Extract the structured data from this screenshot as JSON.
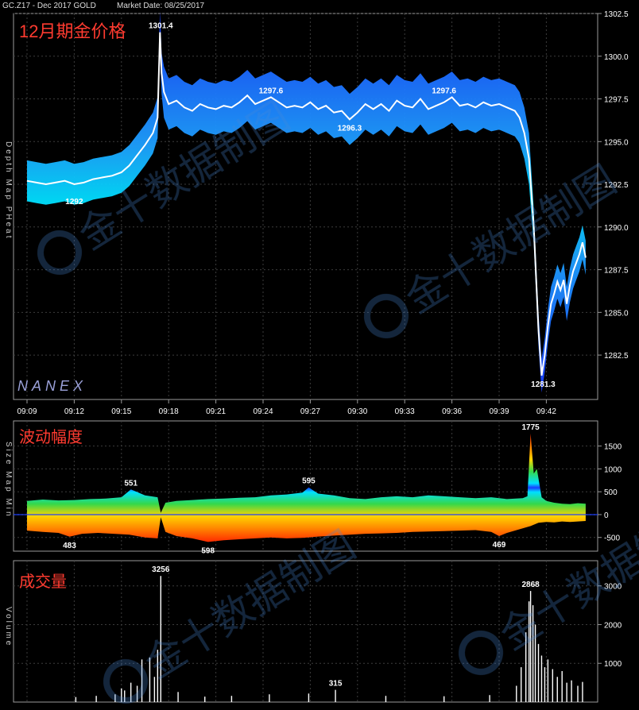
{
  "header": {
    "symbol": "GC.Z17 - Dec 2017 GOLD",
    "market_date": "Market Date: 08/25/2017"
  },
  "colors": {
    "background": "#000000",
    "panel_border": "#9a9a9a",
    "grid": "#3c3c3c",
    "title_red": "#ff3b30",
    "price_line": "#ffffff",
    "depth_blue": "#1a3cff",
    "heat_cyan": "#00e0ff",
    "heat_green": "#35d84a",
    "heat_yellow": "#ffd400",
    "heat_red": "#ff2a00"
  },
  "watermark": {
    "text": "金十数据制图",
    "icon": "jin10-logo-icon"
  },
  "chart_data": [
    {
      "id": "price",
      "type": "line",
      "title": "12月期金价格",
      "side_label": "Depth Map PHeat",
      "brand": "NANEX",
      "x_ticks": [
        "09:09",
        "09:12",
        "09:15",
        "09:18",
        "09:21",
        "09:24",
        "09:27",
        "09:30",
        "09:33",
        "09:36",
        "09:39",
        "09:42"
      ],
      "y_ticks": [
        1302.5,
        1300,
        1297.5,
        1295,
        1292.5,
        1290,
        1287.5,
        1285,
        1282.5
      ],
      "ylim": [
        1279.9,
        1302.5
      ],
      "annotations": [
        {
          "label": "1301.4",
          "x": "09:17.5",
          "y": 1301.4
        },
        {
          "label": "1297.6",
          "x": "09:24.5",
          "y": 1297.6
        },
        {
          "label": "1297.6",
          "x": "09:35.5",
          "y": 1297.6
        },
        {
          "label": "1296.3",
          "x": "09:29.5",
          "y": 1296.3
        },
        {
          "label": "1292",
          "x": "09:12",
          "y": 1292.0
        },
        {
          "label": "1281.3",
          "x": "09:41.8",
          "y": 1281.3
        }
      ],
      "series": [
        {
          "x": [
            9.0,
            9.6,
            10.2,
            10.8,
            11.4,
            12.0,
            12.6,
            13.2,
            13.8,
            14.4,
            15.0,
            15.5,
            16.0,
            16.5,
            17.0,
            17.3,
            17.45,
            17.55,
            17.7,
            18.0,
            18.5,
            19.0,
            19.5,
            20.0,
            20.5,
            21.0,
            21.5,
            22.0,
            22.5,
            23.0,
            23.5,
            24.0,
            24.5,
            25.0,
            25.5,
            26.0,
            26.5,
            27.0,
            27.5,
            28.0,
            28.5,
            29.0,
            29.5,
            30.0,
            30.5,
            31.0,
            31.5,
            32.0,
            32.5,
            33.0,
            33.5,
            34.0,
            34.5,
            35.0,
            35.5,
            36.0,
            36.5,
            37.0,
            37.5,
            38.0,
            38.5,
            39.0,
            39.5,
            40.0,
            40.3,
            40.6,
            40.9,
            41.2,
            41.5,
            41.7,
            41.9,
            42.1,
            42.3,
            42.5,
            42.7,
            42.9,
            43.1,
            43.3,
            43.5,
            43.7,
            43.9,
            44.1,
            44.3,
            44.5
          ],
          "y": [
            1292.7,
            1292.6,
            1292.5,
            1292.6,
            1292.7,
            1292.5,
            1292.6,
            1292.8,
            1292.9,
            1293.0,
            1293.2,
            1293.6,
            1294.2,
            1294.8,
            1295.5,
            1296.4,
            1301.4,
            1299.0,
            1297.9,
            1297.2,
            1297.4,
            1297.0,
            1296.8,
            1297.2,
            1297.0,
            1296.9,
            1297.1,
            1297.0,
            1297.3,
            1297.7,
            1297.2,
            1297.4,
            1297.6,
            1297.3,
            1297.0,
            1297.1,
            1297.0,
            1297.3,
            1296.9,
            1297.1,
            1296.7,
            1296.8,
            1296.3,
            1296.7,
            1297.2,
            1296.9,
            1297.2,
            1296.8,
            1297.4,
            1297.1,
            1297.0,
            1297.5,
            1296.9,
            1297.1,
            1297.3,
            1297.6,
            1297.1,
            1297.2,
            1297.0,
            1297.3,
            1297.1,
            1297.2,
            1297.0,
            1296.8,
            1296.4,
            1295.5,
            1294.0,
            1290.0,
            1284.0,
            1281.3,
            1282.5,
            1284.2,
            1285.5,
            1286.1,
            1286.8,
            1286.3,
            1286.9,
            1285.5,
            1286.6,
            1287.4,
            1287.9,
            1288.4,
            1289.1,
            1288.2
          ]
        }
      ]
    },
    {
      "id": "size",
      "type": "area",
      "title": "波动幅度",
      "side_label": "Size Map Min",
      "y_ticks": [
        1500,
        1000,
        500,
        0,
        -500
      ],
      "ylim": [
        -800,
        2050
      ],
      "annotations": [
        {
          "label": "551",
          "x": "09:15.6",
          "y": 551
        },
        {
          "label": "483",
          "x": "09:11.7",
          "y": -483
        },
        {
          "label": "598",
          "x": "09:20.5",
          "y": -598
        },
        {
          "label": "595",
          "x": "09:26.9",
          "y": 595
        },
        {
          "label": "469",
          "x": "09:39.0",
          "y": -469
        },
        {
          "label": "1775",
          "x": "09:41.0",
          "y": 1775
        }
      ],
      "series": [
        {
          "name": "upper",
          "x": [
            9.0,
            10.0,
            11.0,
            12.0,
            13.0,
            14.0,
            15.0,
            15.6,
            16.5,
            17.3,
            17.5,
            17.8,
            18.5,
            19.5,
            20.5,
            21.5,
            22.5,
            23.5,
            24.5,
            25.5,
            26.5,
            26.9,
            27.5,
            28.5,
            29.5,
            30.5,
            31.5,
            32.5,
            33.5,
            34.5,
            35.5,
            36.5,
            37.5,
            38.5,
            39.5,
            40.5,
            40.8,
            41.0,
            41.2,
            41.4,
            41.7,
            42.0,
            42.5,
            43.0,
            43.5,
            44.0,
            44.5
          ],
          "values": [
            300,
            330,
            310,
            320,
            340,
            350,
            380,
            551,
            420,
            380,
            40,
            260,
            300,
            320,
            340,
            350,
            370,
            380,
            420,
            440,
            480,
            595,
            460,
            420,
            360,
            340,
            380,
            400,
            380,
            420,
            400,
            380,
            360,
            380,
            340,
            360,
            400,
            1775,
            900,
            1000,
            380,
            300,
            260,
            240,
            230,
            250,
            240
          ]
        },
        {
          "name": "lower",
          "x": [
            9.0,
            10.0,
            11.0,
            11.7,
            12.5,
            13.5,
            14.5,
            15.5,
            16.5,
            17.3,
            17.5,
            17.8,
            18.5,
            19.5,
            20.5,
            21.5,
            22.5,
            23.5,
            24.5,
            25.5,
            26.5,
            27.5,
            28.5,
            29.5,
            30.5,
            31.5,
            32.5,
            33.5,
            34.5,
            35.5,
            36.5,
            37.5,
            38.5,
            39.0,
            39.5,
            40.5,
            41.0,
            41.5,
            42.0,
            42.5,
            43.0,
            43.5,
            44.0,
            44.5
          ],
          "values": [
            -350,
            -380,
            -400,
            -483,
            -420,
            -400,
            -420,
            -440,
            -500,
            -520,
            -60,
            -380,
            -470,
            -520,
            -598,
            -560,
            -540,
            -520,
            -500,
            -520,
            -510,
            -480,
            -460,
            -440,
            -420,
            -410,
            -400,
            -380,
            -370,
            -360,
            -350,
            -340,
            -380,
            -469,
            -400,
            -300,
            -250,
            -180,
            -160,
            -170,
            -150,
            -160,
            -150,
            -140
          ]
        }
      ]
    },
    {
      "id": "volume",
      "type": "bar",
      "title": "成交量",
      "side_label": "Volume",
      "y_ticks": [
        3000,
        2000,
        1000
      ],
      "ylim": [
        0,
        3650
      ],
      "annotations": [
        {
          "label": "3256",
          "x": "09:17.5",
          "y": 3256
        },
        {
          "label": "315",
          "x": "09:28.6",
          "y": 315
        },
        {
          "label": "2868",
          "x": "09:41.0",
          "y": 2868
        }
      ],
      "spikes": [
        {
          "x": 17.5,
          "value": 3256
        },
        {
          "x": 17.3,
          "value": 1350
        },
        {
          "x": 17.1,
          "value": 650
        },
        {
          "x": 16.8,
          "value": 1150
        },
        {
          "x": 16.3,
          "value": 1100
        },
        {
          "x": 16.0,
          "value": 420
        },
        {
          "x": 15.6,
          "value": 500
        },
        {
          "x": 15.2,
          "value": 300
        },
        {
          "x": 15.0,
          "value": 350
        },
        {
          "x": 14.6,
          "value": 200
        },
        {
          "x": 13.4,
          "value": 160
        },
        {
          "x": 12.1,
          "value": 130
        },
        {
          "x": 18.6,
          "value": 260
        },
        {
          "x": 20.3,
          "value": 140
        },
        {
          "x": 22.0,
          "value": 160
        },
        {
          "x": 24.4,
          "value": 200
        },
        {
          "x": 26.9,
          "value": 220
        },
        {
          "x": 28.6,
          "value": 315
        },
        {
          "x": 31.8,
          "value": 160
        },
        {
          "x": 35.5,
          "value": 150
        },
        {
          "x": 38.4,
          "value": 180
        },
        {
          "x": 40.1,
          "value": 420
        },
        {
          "x": 40.4,
          "value": 900
        },
        {
          "x": 40.7,
          "value": 1800
        },
        {
          "x": 40.9,
          "value": 2600
        },
        {
          "x": 41.0,
          "value": 2868
        },
        {
          "x": 41.15,
          "value": 2500
        },
        {
          "x": 41.3,
          "value": 2000
        },
        {
          "x": 41.5,
          "value": 1500
        },
        {
          "x": 41.7,
          "value": 1200
        },
        {
          "x": 41.9,
          "value": 900
        },
        {
          "x": 42.1,
          "value": 1100
        },
        {
          "x": 42.4,
          "value": 850
        },
        {
          "x": 42.7,
          "value": 650
        },
        {
          "x": 43.0,
          "value": 800
        },
        {
          "x": 43.3,
          "value": 500
        },
        {
          "x": 43.6,
          "value": 560
        },
        {
          "x": 44.0,
          "value": 420
        },
        {
          "x": 44.3,
          "value": 520
        }
      ]
    }
  ]
}
